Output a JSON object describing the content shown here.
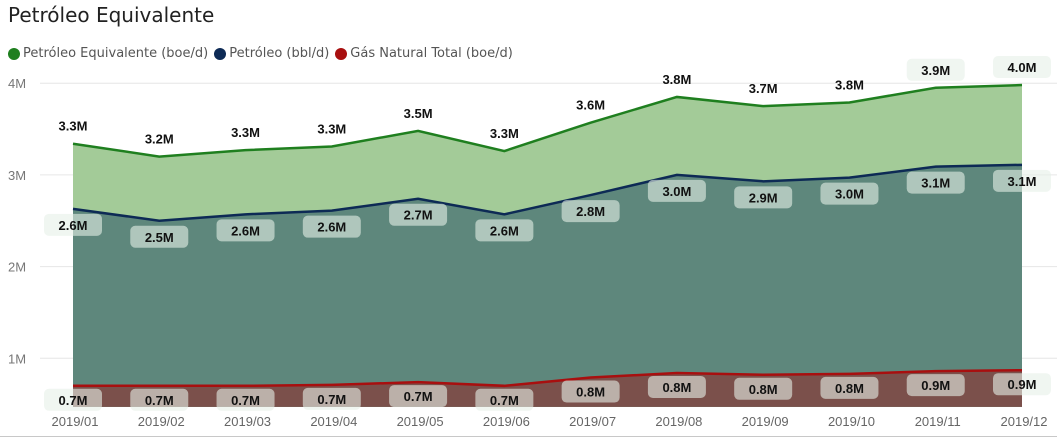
{
  "chart_data": {
    "type": "area",
    "title": "Petróleo Equivalente",
    "categories": [
      "2019/01",
      "2019/02",
      "2019/03",
      "2019/04",
      "2019/05",
      "2019/06",
      "2019/07",
      "2019/08",
      "2019/09",
      "2019/10",
      "2019/11",
      "2019/12"
    ],
    "series": [
      {
        "name": "Petróleo Equivalente (boe/d)",
        "color": "#1f7f1f",
        "fill": "#a3cb98",
        "values": [
          3.34,
          3.2,
          3.27,
          3.31,
          3.48,
          3.26,
          3.57,
          3.85,
          3.75,
          3.79,
          3.95,
          3.98
        ],
        "labels": [
          "3.3M",
          "3.2M",
          "3.3M",
          "3.3M",
          "3.5M",
          "3.3M",
          "3.6M",
          "3.8M",
          "3.7M",
          "3.8M",
          "3.9M",
          "4.0M"
        ]
      },
      {
        "name": "Petróleo (bbl/d)",
        "color": "#0d2a55",
        "fill": "#5e877c",
        "values": [
          2.63,
          2.5,
          2.57,
          2.61,
          2.74,
          2.57,
          2.78,
          3.0,
          2.93,
          2.97,
          3.09,
          3.11
        ],
        "labels": [
          "2.6M",
          "2.5M",
          "2.6M",
          "2.6M",
          "2.7M",
          "2.6M",
          "2.8M",
          "3.0M",
          "2.9M",
          "3.0M",
          "3.1M",
          "3.1M"
        ]
      },
      {
        "name": "Gás Natural Total (boe/d)",
        "color": "#a80f0f",
        "fill": "#7b504b",
        "values": [
          0.7,
          0.7,
          0.7,
          0.71,
          0.74,
          0.7,
          0.79,
          0.84,
          0.82,
          0.83,
          0.86,
          0.87
        ],
        "labels": [
          "0.7M",
          "0.7M",
          "0.7M",
          "0.7M",
          "0.7M",
          "0.7M",
          "0.8M",
          "0.8M",
          "0.8M",
          "0.8M",
          "0.9M",
          "0.9M"
        ]
      }
    ],
    "yticks": [
      {
        "v": 1,
        "label": "1M"
      },
      {
        "v": 2,
        "label": "2M"
      },
      {
        "v": 3,
        "label": "3M"
      },
      {
        "v": 4,
        "label": "4M"
      }
    ],
    "ylim": [
      0.47,
      4
    ],
    "grid": true,
    "legend": "top-left"
  }
}
